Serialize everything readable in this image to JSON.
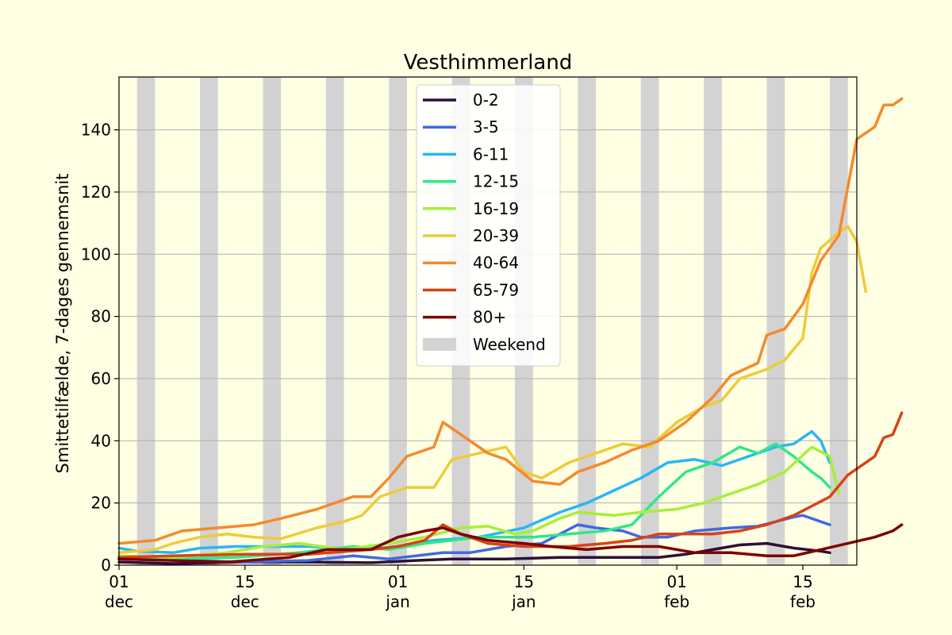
{
  "chart_data": {
    "type": "line",
    "title": "Vesthimmerland",
    "xlabel": "",
    "ylabel": "Smittetilfælde, 7-dages gennemsnit",
    "x_start": "2020-12-01",
    "xlim": [
      "2020-12-01",
      "2021-02-21"
    ],
    "ylim": [
      0,
      157
    ],
    "grid": "horizontal",
    "legend_position": "top-center",
    "background_color": "#ffffe4",
    "plot_background_color": "#ffffe4",
    "weekend_color": "#d3d3d3",
    "grid_color": "#b0b0b0",
    "y_ticks": [
      0,
      20,
      40,
      60,
      80,
      100,
      120,
      140
    ],
    "x_ticks": [
      {
        "date": "2020-12-01",
        "label": "01\ndec"
      },
      {
        "date": "2020-12-15",
        "label": "15\ndec"
      },
      {
        "date": "2021-01-01",
        "label": "01\njan"
      },
      {
        "date": "2021-01-15",
        "label": "15\njan"
      },
      {
        "date": "2021-02-01",
        "label": "01\nfeb"
      },
      {
        "date": "2021-02-15",
        "label": "15\nfeb"
      }
    ],
    "weekends": [
      {
        "start": "2020-12-03",
        "end": "2020-12-05"
      },
      {
        "start": "2020-12-10",
        "end": "2020-12-12"
      },
      {
        "start": "2020-12-17",
        "end": "2020-12-19"
      },
      {
        "start": "2020-12-24",
        "end": "2020-12-26"
      },
      {
        "start": "2020-12-31",
        "end": "2021-01-02"
      },
      {
        "start": "2021-01-07",
        "end": "2021-01-09"
      },
      {
        "start": "2021-01-14",
        "end": "2021-01-16"
      },
      {
        "start": "2021-01-21",
        "end": "2021-01-23"
      },
      {
        "start": "2021-01-28",
        "end": "2021-01-30"
      },
      {
        "start": "2021-02-04",
        "end": "2021-02-06"
      },
      {
        "start": "2021-02-11",
        "end": "2021-02-13"
      },
      {
        "start": "2021-02-18",
        "end": "2021-02-20"
      }
    ],
    "weekend_label": "Weekend",
    "series": [
      {
        "name": "0-2",
        "color": "#2d0f3c",
        "points": [
          [
            "2020-12-01",
            1
          ],
          [
            "2020-12-07",
            0.5
          ],
          [
            "2020-12-15",
            1
          ],
          [
            "2020-12-22",
            1
          ],
          [
            "2020-12-29",
            0.8
          ],
          [
            "2021-01-03",
            1.5
          ],
          [
            "2021-01-07",
            2
          ],
          [
            "2021-01-13",
            2
          ],
          [
            "2021-01-19",
            2.5
          ],
          [
            "2021-01-25",
            2.5
          ],
          [
            "2021-01-30",
            2.5
          ],
          [
            "2021-02-02",
            3.5
          ],
          [
            "2021-02-05",
            5
          ],
          [
            "2021-02-08",
            6.5
          ],
          [
            "2021-02-11",
            7
          ],
          [
            "2021-02-14",
            5.5
          ],
          [
            "2021-02-17",
            4.5
          ],
          [
            "2021-02-18",
            4
          ]
        ]
      },
      {
        "name": "3-5",
        "color": "#4169e1",
        "points": [
          [
            "2020-12-01",
            2
          ],
          [
            "2020-12-08",
            1.5
          ],
          [
            "2020-12-15",
            1
          ],
          [
            "2020-12-22",
            1.5
          ],
          [
            "2020-12-27",
            3
          ],
          [
            "2020-12-31",
            2
          ],
          [
            "2021-01-03",
            3
          ],
          [
            "2021-01-06",
            4
          ],
          [
            "2021-01-09",
            4
          ],
          [
            "2021-01-13",
            6
          ],
          [
            "2021-01-17",
            7
          ],
          [
            "2021-01-21",
            13
          ],
          [
            "2021-01-23",
            12
          ],
          [
            "2021-01-26",
            11
          ],
          [
            "2021-01-28",
            9
          ],
          [
            "2021-01-31",
            9
          ],
          [
            "2021-02-03",
            11
          ],
          [
            "2021-02-07",
            12
          ],
          [
            "2021-02-10",
            12.5
          ],
          [
            "2021-02-12",
            14
          ],
          [
            "2021-02-14",
            15.5
          ],
          [
            "2021-02-15",
            16
          ],
          [
            "2021-02-17",
            14
          ],
          [
            "2021-02-18",
            13
          ]
        ]
      },
      {
        "name": "6-11",
        "color": "#29b6f6",
        "points": [
          [
            "2020-12-01",
            5.5
          ],
          [
            "2020-12-03",
            4.5
          ],
          [
            "2020-12-07",
            4
          ],
          [
            "2020-12-10",
            5.5
          ],
          [
            "2020-12-14",
            6
          ],
          [
            "2020-12-17",
            6
          ],
          [
            "2020-12-22",
            6
          ],
          [
            "2020-12-28",
            5
          ],
          [
            "2021-01-01",
            6
          ],
          [
            "2021-01-05",
            8
          ],
          [
            "2021-01-10",
            9
          ],
          [
            "2021-01-15",
            12
          ],
          [
            "2021-01-19",
            17
          ],
          [
            "2021-01-22",
            20
          ],
          [
            "2021-01-25",
            24
          ],
          [
            "2021-01-28",
            28
          ],
          [
            "2021-01-31",
            33
          ],
          [
            "2021-02-03",
            34
          ],
          [
            "2021-02-06",
            32
          ],
          [
            "2021-02-09",
            35
          ],
          [
            "2021-02-12",
            38
          ],
          [
            "2021-02-14",
            39
          ],
          [
            "2021-02-16",
            43
          ],
          [
            "2021-02-17",
            40
          ],
          [
            "2021-02-18",
            33
          ]
        ]
      },
      {
        "name": "12-15",
        "color": "#2ee88a",
        "points": [
          [
            "2020-12-01",
            3
          ],
          [
            "2020-12-07",
            2
          ],
          [
            "2020-12-14",
            2.5
          ],
          [
            "2020-12-21",
            4
          ],
          [
            "2020-12-27",
            6
          ],
          [
            "2020-12-31",
            5
          ],
          [
            "2021-01-04",
            7
          ],
          [
            "2021-01-10",
            9
          ],
          [
            "2021-01-16",
            9
          ],
          [
            "2021-01-20",
            10
          ],
          [
            "2021-01-24",
            11
          ],
          [
            "2021-01-27",
            13
          ],
          [
            "2021-01-30",
            22
          ],
          [
            "2021-02-02",
            30
          ],
          [
            "2021-02-05",
            33
          ],
          [
            "2021-02-08",
            38
          ],
          [
            "2021-02-10",
            36
          ],
          [
            "2021-02-12",
            39
          ],
          [
            "2021-02-14",
            35
          ],
          [
            "2021-02-16",
            30
          ],
          [
            "2021-02-17",
            28
          ],
          [
            "2021-02-18",
            25
          ]
        ]
      },
      {
        "name": "16-19",
        "color": "#a8ee3a",
        "points": [
          [
            "2020-12-01",
            3
          ],
          [
            "2020-12-07",
            2.5
          ],
          [
            "2020-12-13",
            4
          ],
          [
            "2020-12-17",
            6
          ],
          [
            "2020-12-21",
            7
          ],
          [
            "2020-12-26",
            5
          ],
          [
            "2020-12-31",
            7
          ],
          [
            "2021-01-04",
            9
          ],
          [
            "2021-01-08",
            12
          ],
          [
            "2021-01-11",
            12.5
          ],
          [
            "2021-01-14",
            10
          ],
          [
            "2021-01-16",
            11
          ],
          [
            "2021-01-19",
            15
          ],
          [
            "2021-01-21",
            17
          ],
          [
            "2021-01-25",
            16
          ],
          [
            "2021-01-28",
            17
          ],
          [
            "2021-02-01",
            18
          ],
          [
            "2021-02-04",
            20
          ],
          [
            "2021-02-07",
            23
          ],
          [
            "2021-02-10",
            26
          ],
          [
            "2021-02-13",
            30
          ],
          [
            "2021-02-16",
            38
          ],
          [
            "2021-02-18",
            35
          ],
          [
            "2021-02-19",
            23
          ]
        ]
      },
      {
        "name": "20-39",
        "color": "#eecb3a",
        "points": [
          [
            "2020-12-01",
            4
          ],
          [
            "2020-12-05",
            5
          ],
          [
            "2020-12-07",
            7
          ],
          [
            "2020-12-10",
            9
          ],
          [
            "2020-12-13",
            10
          ],
          [
            "2020-12-16",
            9
          ],
          [
            "2020-12-19",
            8.5
          ],
          [
            "2020-12-23",
            12
          ],
          [
            "2020-12-26",
            14
          ],
          [
            "2020-12-28",
            16
          ],
          [
            "2020-12-30",
            22
          ],
          [
            "2021-01-02",
            25
          ],
          [
            "2021-01-05",
            25
          ],
          [
            "2021-01-07",
            34
          ],
          [
            "2021-01-10",
            36
          ],
          [
            "2021-01-13",
            38
          ],
          [
            "2021-01-15",
            30
          ],
          [
            "2021-01-17",
            28
          ],
          [
            "2021-01-20",
            33
          ],
          [
            "2021-01-23",
            36
          ],
          [
            "2021-01-26",
            39
          ],
          [
            "2021-01-29",
            38
          ],
          [
            "2021-02-01",
            46
          ],
          [
            "2021-02-04",
            51
          ],
          [
            "2021-02-06",
            53
          ],
          [
            "2021-02-08",
            60
          ],
          [
            "2021-02-11",
            63
          ],
          [
            "2021-02-13",
            66
          ],
          [
            "2021-02-15",
            73
          ],
          [
            "2021-02-16",
            94
          ],
          [
            "2021-02-17",
            102
          ],
          [
            "2021-02-19",
            107
          ],
          [
            "2021-02-20",
            109
          ],
          [
            "2021-02-21",
            104
          ],
          [
            "2021-02-22",
            88
          ]
        ]
      },
      {
        "name": "40-64",
        "color": "#f5892d",
        "points": [
          [
            "2020-12-01",
            7
          ],
          [
            "2020-12-05",
            8
          ],
          [
            "2020-12-08",
            11
          ],
          [
            "2020-12-12",
            12
          ],
          [
            "2020-12-16",
            13
          ],
          [
            "2020-12-19",
            15
          ],
          [
            "2020-12-23",
            18
          ],
          [
            "2020-12-27",
            22
          ],
          [
            "2020-12-29",
            22
          ],
          [
            "2020-12-31",
            28
          ],
          [
            "2021-01-02",
            35
          ],
          [
            "2021-01-05",
            38
          ],
          [
            "2021-01-06",
            46
          ],
          [
            "2021-01-08",
            42
          ],
          [
            "2021-01-11",
            36
          ],
          [
            "2021-01-13",
            34
          ],
          [
            "2021-01-16",
            27
          ],
          [
            "2021-01-19",
            26
          ],
          [
            "2021-01-21",
            30
          ],
          [
            "2021-01-24",
            33
          ],
          [
            "2021-01-27",
            37
          ],
          [
            "2021-01-30",
            40
          ],
          [
            "2021-02-02",
            46
          ],
          [
            "2021-02-05",
            54
          ],
          [
            "2021-02-07",
            61
          ],
          [
            "2021-02-10",
            65
          ],
          [
            "2021-02-11",
            74
          ],
          [
            "2021-02-13",
            76
          ],
          [
            "2021-02-15",
            84
          ],
          [
            "2021-02-17",
            98
          ],
          [
            "2021-02-19",
            106
          ],
          [
            "2021-02-21",
            137
          ],
          [
            "2021-02-23",
            141
          ],
          [
            "2021-02-24",
            148
          ],
          [
            "2021-02-25",
            148
          ],
          [
            "2021-02-26",
            150
          ]
        ]
      },
      {
        "name": "65-79",
        "color": "#d84315",
        "points": [
          [
            "2020-12-01",
            2.5
          ],
          [
            "2020-12-07",
            3
          ],
          [
            "2020-12-15",
            3.5
          ],
          [
            "2020-12-22",
            3.5
          ],
          [
            "2020-12-29",
            5
          ],
          [
            "2021-01-01",
            6
          ],
          [
            "2021-01-04",
            8
          ],
          [
            "2021-01-06",
            13
          ],
          [
            "2021-01-08",
            10
          ],
          [
            "2021-01-11",
            7
          ],
          [
            "2021-01-15",
            6
          ],
          [
            "2021-01-20",
            6
          ],
          [
            "2021-01-24",
            7
          ],
          [
            "2021-01-27",
            8
          ],
          [
            "2021-01-30",
            10
          ],
          [
            "2021-02-02",
            10
          ],
          [
            "2021-02-05",
            10
          ],
          [
            "2021-02-08",
            11
          ],
          [
            "2021-02-11",
            13
          ],
          [
            "2021-02-14",
            16
          ],
          [
            "2021-02-16",
            19
          ],
          [
            "2021-02-18",
            22
          ],
          [
            "2021-02-20",
            29
          ],
          [
            "2021-02-23",
            35
          ],
          [
            "2021-02-24",
            41
          ],
          [
            "2021-02-25",
            42
          ],
          [
            "2021-02-26",
            49
          ]
        ]
      },
      {
        "name": "80+",
        "color": "#7f0000",
        "points": [
          [
            "2020-12-01",
            2
          ],
          [
            "2020-12-07",
            1.5
          ],
          [
            "2020-12-13",
            1
          ],
          [
            "2020-12-20",
            2.5
          ],
          [
            "2020-12-24",
            5
          ],
          [
            "2020-12-29",
            5
          ],
          [
            "2021-01-01",
            9
          ],
          [
            "2021-01-04",
            11
          ],
          [
            "2021-01-06",
            12
          ],
          [
            "2021-01-08",
            10
          ],
          [
            "2021-01-11",
            8
          ],
          [
            "2021-01-15",
            7
          ],
          [
            "2021-01-18",
            6
          ],
          [
            "2021-01-22",
            5
          ],
          [
            "2021-01-26",
            6
          ],
          [
            "2021-01-30",
            6
          ],
          [
            "2021-02-03",
            4
          ],
          [
            "2021-02-07",
            4
          ],
          [
            "2021-02-11",
            3
          ],
          [
            "2021-02-14",
            3
          ],
          [
            "2021-02-17",
            5
          ],
          [
            "2021-02-20",
            7
          ],
          [
            "2021-02-23",
            9
          ],
          [
            "2021-02-25",
            11
          ],
          [
            "2021-02-26",
            13
          ]
        ]
      }
    ]
  }
}
